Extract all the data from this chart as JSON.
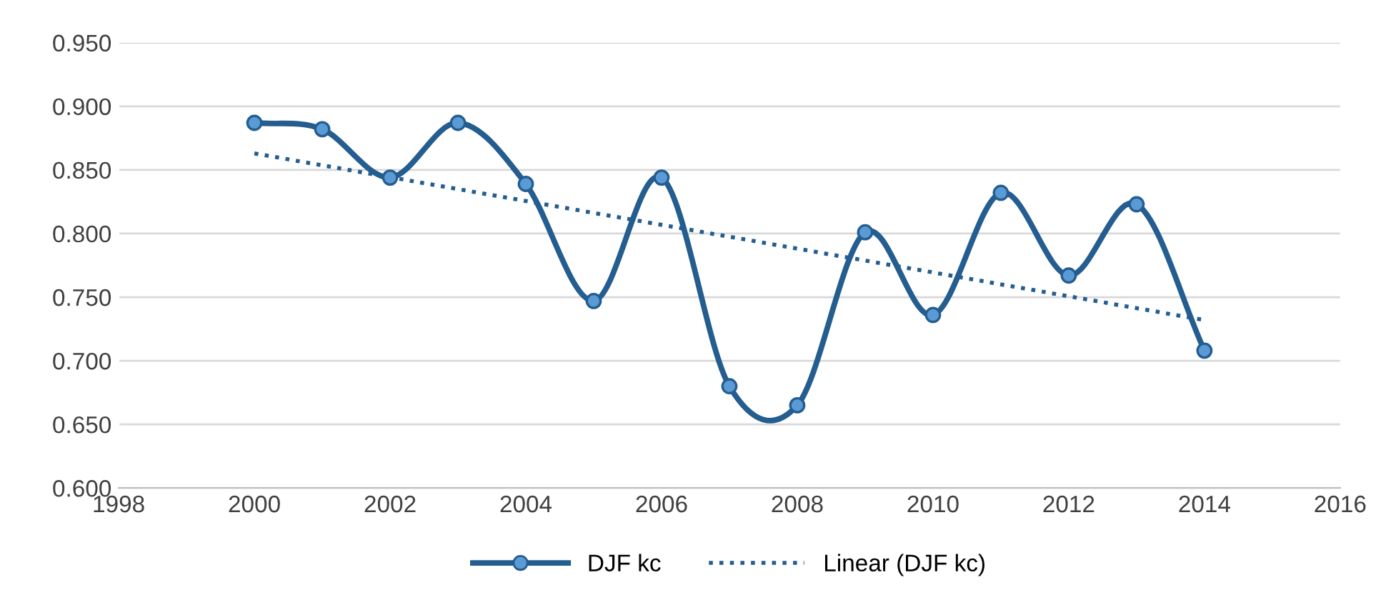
{
  "chart_data": {
    "type": "line",
    "x": [
      2000,
      2001,
      2002,
      2003,
      2004,
      2005,
      2006,
      2007,
      2008,
      2009,
      2010,
      2011,
      2012,
      2013,
      2014
    ],
    "series": [
      {
        "name": "DJF kc",
        "color": "#245d8f",
        "marker": "circle",
        "line_style": "solid",
        "values": [
          0.887,
          0.882,
          0.844,
          0.887,
          0.839,
          0.747,
          0.844,
          0.68,
          0.665,
          0.801,
          0.736,
          0.832,
          0.767,
          0.823,
          0.708
        ]
      },
      {
        "name": "Linear (DJF kc)",
        "type": "line",
        "color": "#245d8f",
        "marker": "none",
        "line_style": "dotted",
        "x": [
          2000,
          2014
        ],
        "values": [
          0.863,
          0.732
        ]
      }
    ],
    "xlim": [
      1998,
      2016
    ],
    "xticks": [
      1998,
      2000,
      2002,
      2004,
      2006,
      2008,
      2010,
      2012,
      2014,
      2016
    ],
    "ylim": [
      0.6,
      0.95
    ],
    "yticks": [
      {
        "value": 0.6,
        "label": "0.600"
      },
      {
        "value": 0.65,
        "label": "0.650"
      },
      {
        "value": 0.7,
        "label": "0.700"
      },
      {
        "value": 0.75,
        "label": "0.750"
      },
      {
        "value": 0.8,
        "label": "0.800"
      },
      {
        "value": 0.85,
        "label": "0.850"
      },
      {
        "value": 0.9,
        "label": "0.900"
      },
      {
        "value": 0.95,
        "label": "0.950"
      }
    ],
    "grid": "y",
    "legend": "bottom"
  }
}
